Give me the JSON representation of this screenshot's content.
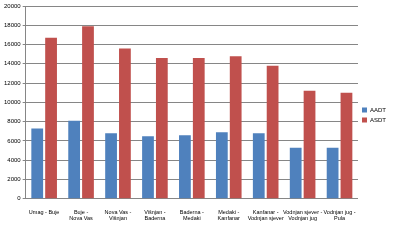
{
  "chart_data": {
    "type": "bar",
    "categories": [
      "Umag - Buje",
      "Buje - Nova Vas",
      "Nova Vas - Višnjan",
      "Višnjan - Baderna",
      "Baderna - Medaki",
      "Medaki - Kanfanar",
      "Kanfanar - Vodnjan sjever",
      "Vodnjan sjever - Vodnjan jug",
      "Vodnjan jug - Pula"
    ],
    "series": [
      {
        "name": "AADT",
        "color": "#4f81bd",
        "values": [
          7300,
          8100,
          6800,
          6500,
          6600,
          6900,
          6800,
          5300,
          5300
        ]
      },
      {
        "name": "ASDT",
        "color": "#c0504d",
        "values": [
          16700,
          17900,
          15600,
          14600,
          14600,
          14800,
          13800,
          11200,
          11000
        ]
      }
    ],
    "ylim": [
      0,
      20000
    ],
    "yticks": [
      0,
      2000,
      4000,
      6000,
      8000,
      10000,
      12000,
      14000,
      16000,
      18000,
      20000
    ],
    "grid": true,
    "legend": "right"
  }
}
